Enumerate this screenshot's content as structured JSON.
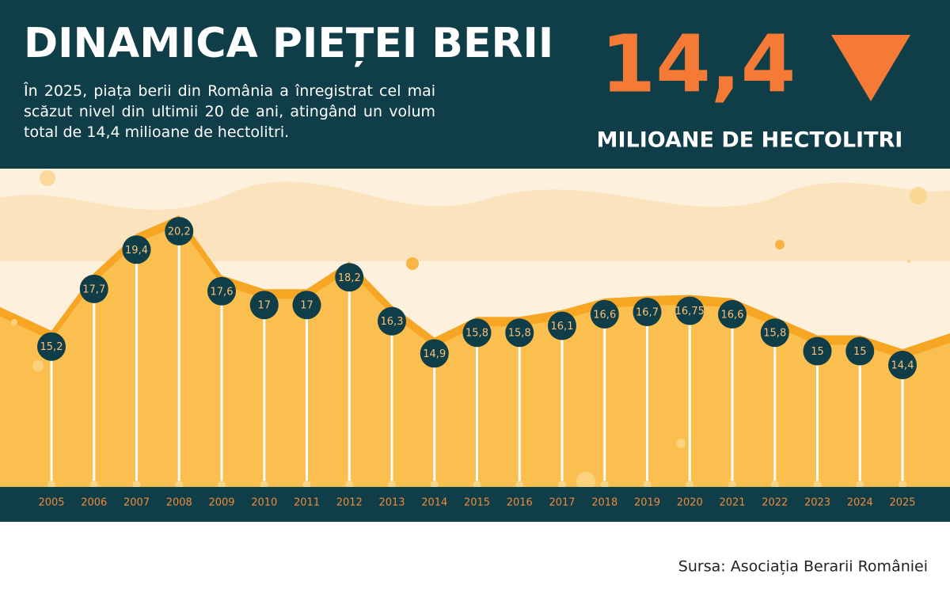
{
  "chart_data": {
    "type": "lollipop",
    "title": "DINAMICA PIEȚEI BERII",
    "subtitle": "În 2025, piața berii din România a înregistrat cel mai scăzut nivel din ultimii 20 de ani, atingând un volum total de 14,4 milioane de hectolitri.",
    "highlight": "14,4",
    "highlight_unit": "MILIOANE DE HECTOLITRI",
    "categories": [
      "2005",
      "2006",
      "2007",
      "2008",
      "2009",
      "2010",
      "2011",
      "2012",
      "2013",
      "2014",
      "2015",
      "2016",
      "2017",
      "2018",
      "2019",
      "2020",
      "2021",
      "2022",
      "2023",
      "2024",
      "2025"
    ],
    "values": [
      15.2,
      17.7,
      19.4,
      20.2,
      17.6,
      17,
      17,
      18.2,
      16.3,
      14.9,
      15.8,
      15.8,
      16.1,
      16.6,
      16.7,
      16.75,
      16.6,
      15.8,
      15,
      15,
      14.4
    ],
    "value_labels": [
      "15,2",
      "17,7",
      "19,4",
      "20,2",
      "17,6",
      "17",
      "17",
      "18,2",
      "16,3",
      "14,9",
      "15,8",
      "15,8",
      "16,1",
      "16,6",
      "16,7",
      "16,75",
      "16,6",
      "15,8",
      "15",
      "15",
      "14,4"
    ],
    "color": "#0f3d48",
    "source": "Sursa: Asociația Berarii României"
  }
}
